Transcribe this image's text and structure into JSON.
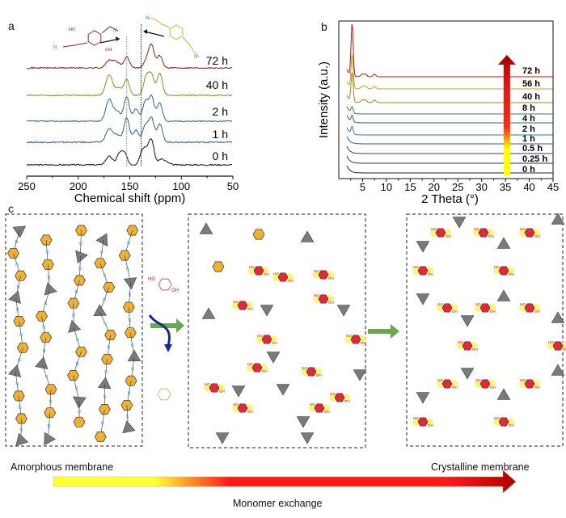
{
  "panels": {
    "a": "a",
    "b": "b",
    "c": "c"
  },
  "chart_data": [
    {
      "id": "a",
      "type": "line",
      "title": "",
      "xlabel": "Chemical shift (ppm)",
      "ylabel": "",
      "xlim": [
        250,
        50
      ],
      "x_ticks": [
        250,
        200,
        150,
        100,
        50
      ],
      "x_ticks_reversed": true,
      "grid": false,
      "reference_lines_ppm": [
        153,
        139
      ],
      "annotations": [
        "HO",
        "OH",
        "N"
      ],
      "series": [
        {
          "name": "0 h",
          "color": "#111111",
          "peaks": [
            [
              170,
              0.35
            ],
            [
              160,
              0.45
            ],
            [
              155,
              0.45
            ],
            [
              138,
              0.5
            ],
            [
              134,
              0.45
            ],
            [
              129,
              1.0
            ],
            [
              120,
              0.2
            ],
            [
              115,
              0.12
            ]
          ]
        },
        {
          "name": "1 h",
          "color": "#2f5f8a",
          "peaks": [
            [
              170,
              0.55
            ],
            [
              162,
              0.3
            ],
            [
              153,
              1.0
            ],
            [
              144,
              0.5
            ],
            [
              135,
              0.7
            ],
            [
              129,
              1.0
            ],
            [
              121,
              0.75
            ]
          ]
        },
        {
          "name": "2 h",
          "color": "#2a6b7d",
          "peaks": [
            [
              170,
              0.9
            ],
            [
              162,
              0.4
            ],
            [
              153,
              1.0
            ],
            [
              144,
              0.5
            ],
            [
              135,
              0.8
            ],
            [
              129,
              1.0
            ],
            [
              121,
              0.75
            ]
          ]
        },
        {
          "name": "40 h",
          "color": "#8c8a1e",
          "peaks": [
            [
              170,
              0.85
            ],
            [
              161,
              0.3
            ],
            [
              153,
              0.65
            ],
            [
              134,
              0.75
            ],
            [
              129,
              0.8
            ],
            [
              121,
              0.9
            ]
          ]
        },
        {
          "name": "72 h",
          "color": "#8b1a1a",
          "peaks": [
            [
              170,
              0.3
            ],
            [
              163,
              0.25
            ],
            [
              153,
              0.45
            ],
            [
              134,
              0.3
            ],
            [
              129,
              0.95
            ],
            [
              121,
              0.5
            ]
          ]
        }
      ]
    },
    {
      "id": "b",
      "type": "line",
      "title": "",
      "xlabel": "2 Theta (°)",
      "ylabel": "Intensity (a.u.)",
      "xlim": [
        0,
        45
      ],
      "x_ticks": [
        5,
        10,
        15,
        20,
        25,
        30,
        35,
        40,
        45
      ],
      "grid": false,
      "legend_arrow": "time increases upward, yellow to dark red",
      "series": [
        {
          "name": "0 h",
          "color": "#222222",
          "peak_2theta": null,
          "peak_height": 0
        },
        {
          "name": "0.25 h",
          "color": "#1c2f9a",
          "peak_2theta": null,
          "peak_height": 0
        },
        {
          "name": "0.5 h",
          "color": "#3a3a6a",
          "peak_2theta": null,
          "peak_height": 0
        },
        {
          "name": "1 h",
          "color": "#2a5a9a",
          "peak_2theta": null,
          "peak_height": 0
        },
        {
          "name": "2 h",
          "color": "#2a7aa8",
          "peak_2theta": 2.8,
          "peak_height": 0.35
        },
        {
          "name": "4 h",
          "color": "#1f6f5a",
          "peak_2theta": 2.8,
          "peak_height": 0.3
        },
        {
          "name": "8 h",
          "color": "#2a8a3a",
          "peak_2theta": 2.8,
          "peak_height": 0.3
        },
        {
          "name": "40 h",
          "color": "#9a8a20",
          "peak_2theta": 2.8,
          "peak_height": 1.4
        },
        {
          "name": "56 h",
          "color": "#c8a020",
          "peak_2theta": 2.8,
          "peak_height": 1.6
        },
        {
          "name": "72 h",
          "color": "#b01a1a",
          "peak_2theta": 2.8,
          "peak_height": 2.5
        }
      ],
      "minor_peaks_2theta": [
        4.9,
        5.6,
        7.5
      ]
    }
  ],
  "diagram": {
    "left_panel_label": "Amorphous membrane",
    "right_panel_label": "Crystalline membrane",
    "arrow_label": "Monomer exchange",
    "node_labels": {
      "imine": "N",
      "hydroxyl_up": "HO",
      "hydroxyl_down": "OH"
    },
    "colors": {
      "triangle": "#7a7a7a",
      "hexagon_old": "#f0b030",
      "hexagon_new": "#e8263a",
      "imine_text": "#1aa0c8",
      "glow": "#fff066",
      "hydroxyl_text": "#b0202a",
      "green_arrow": "#6aa84f",
      "blue_arrow": "#1a2a9a",
      "gradient_start": "#ffff33",
      "gradient_mid": "#ff1a1a",
      "gradient_end": "#b00000"
    }
  }
}
